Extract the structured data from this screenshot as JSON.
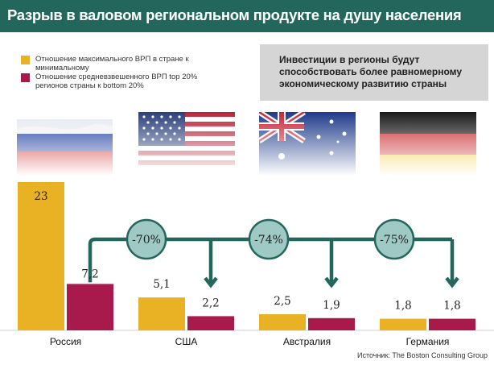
{
  "title": "Разрыв в валовом региональном продукте на душу населения",
  "legend": [
    {
      "label": "Отношение максимального ВРП в стране к минимальному",
      "color": "#e8b224"
    },
    {
      "label": "Отношение средневзвешенного ВРП top 20% регионов страны  к bottom 20%",
      "color": "#a81a4c"
    }
  ],
  "note": "Инвестиции в регионы будут способствовать более равномерному экономическому развитию  страны",
  "source": "Источник: The Boston Consulting Group",
  "colors": {
    "header": "#23665c",
    "connector": "#23665c",
    "circle": "#9fc9c4",
    "gold": "#e8b224",
    "crimson": "#a81a4c"
  },
  "chart_data": {
    "type": "bar",
    "title": "Разрыв в валовом региональном продукте на душу населения",
    "categories": [
      "Россия",
      "США",
      "Австралия",
      "Германия"
    ],
    "series": [
      {
        "name": "Отношение максимального ВРП в стране к минимальному",
        "values": [
          23,
          5.1,
          2.5,
          1.8
        ],
        "labels": [
          "23",
          "5,1",
          "2,5",
          "1,8"
        ]
      },
      {
        "name": "Отношение средневзвешенного ВРП top 20% регионов страны  к bottom 20%",
        "values": [
          7.2,
          2.2,
          1.9,
          1.8
        ],
        "labels": [
          "7,2",
          "2,2",
          "1,9",
          "1,8"
        ]
      }
    ],
    "annotations": [
      "-70%",
      "-74%",
      "-75%"
    ],
    "xlabel": "",
    "ylabel": "",
    "ylim": [
      0,
      23
    ]
  }
}
